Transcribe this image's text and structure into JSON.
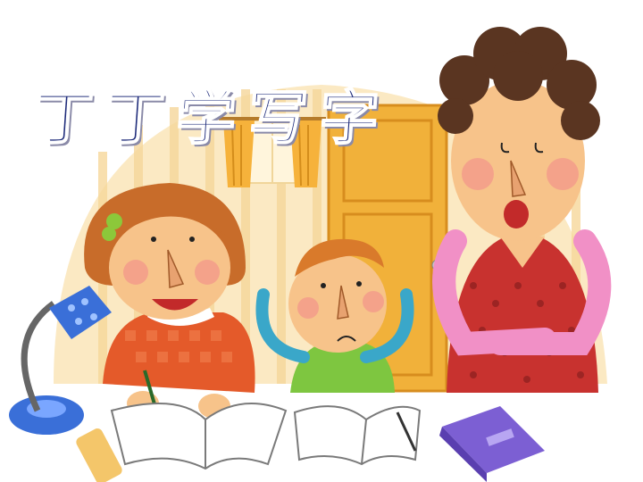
{
  "title": {
    "chars": [
      "丁",
      "丁",
      "学",
      "写",
      "字"
    ],
    "color": "#1e2b7a"
  },
  "scene": {
    "colors": {
      "wall": "#fbe9c3",
      "wall_stripe": "#f6d79a",
      "door": "#f1b13a",
      "window": "#fff5dc",
      "curtain": "#f6b23b",
      "skin": "#f7c38a",
      "girl_hair": "#c86c2a",
      "girl_shirt": "#e45a2a",
      "boy_shirt": "#7ec640",
      "mother_hair": "#5a3521",
      "mother_dress": "#c8322f",
      "mother_sleeve": "#f190c6",
      "lamp": "#3a6fd8",
      "book_purple": "#7c5fd3",
      "eraser": "#f4c66a"
    }
  }
}
